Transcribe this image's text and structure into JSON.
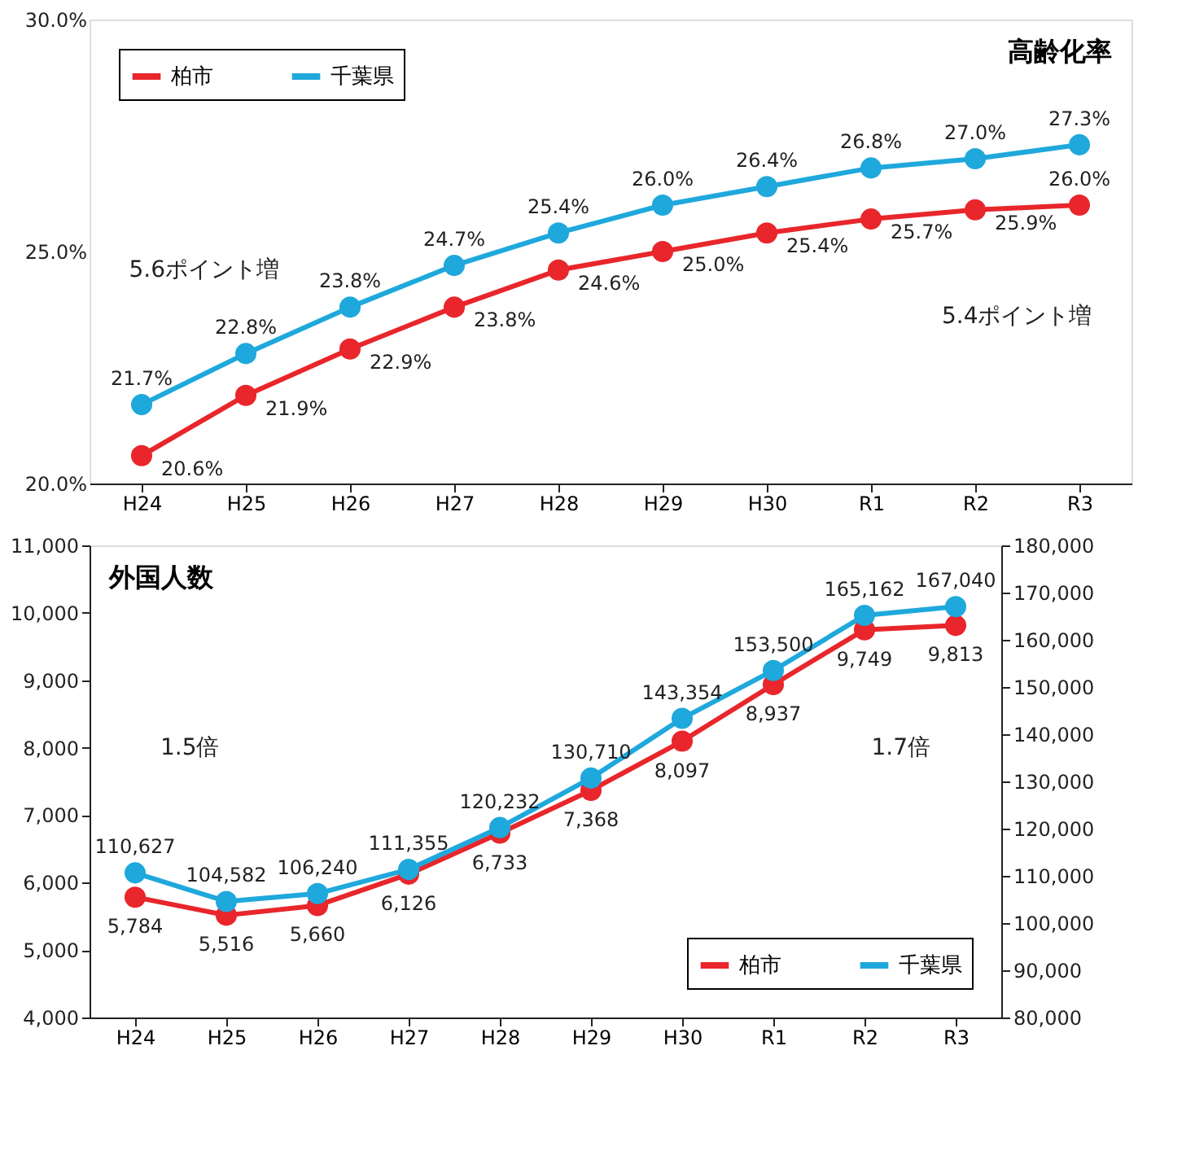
{
  "chart_data": [
    {
      "type": "line",
      "title": "高齢化率",
      "categories": [
        "H24",
        "H25",
        "H26",
        "H27",
        "H28",
        "H29",
        "H30",
        "R1",
        "R2",
        "R3"
      ],
      "ylim": [
        20,
        30
      ],
      "yticks": [
        {
          "value": 20,
          "label": "20.0%"
        },
        {
          "value": 25,
          "label": "25.0%"
        },
        {
          "value": 30,
          "label": "30.0%"
        }
      ],
      "legend": "top left",
      "marker": "circle",
      "grid": false,
      "series": [
        {
          "name": "柏市",
          "color": "#e8262b",
          "values": [
            20.6,
            21.9,
            22.9,
            23.8,
            24.6,
            25.0,
            25.4,
            25.7,
            25.9,
            26.0
          ],
          "value_labels": [
            "20.6%",
            "21.9%",
            "22.9%",
            "23.8%",
            "24.6%",
            "25.0%",
            "25.4%",
            "25.7%",
            "25.9%",
            "26.0%"
          ]
        },
        {
          "name": "千葉県",
          "color": "#1fa8dc",
          "values": [
            21.7,
            22.8,
            23.8,
            24.7,
            25.4,
            26.0,
            26.4,
            26.8,
            27.0,
            27.3
          ],
          "value_labels": [
            "21.7%",
            "22.8%",
            "23.8%",
            "24.7%",
            "25.4%",
            "26.0%",
            "26.4%",
            "26.8%",
            "27.0%",
            "27.3%"
          ]
        }
      ],
      "annotations": [
        "5.6ポイント増",
        "5.4ポイント増"
      ]
    },
    {
      "type": "line",
      "title": "外国人数",
      "categories": [
        "H24",
        "H25",
        "H26",
        "H27",
        "H28",
        "H29",
        "H30",
        "R1",
        "R2",
        "R3"
      ],
      "ylim": [
        4000,
        11000
      ],
      "yticks": [
        {
          "value": 4000,
          "label": "4,000"
        },
        {
          "value": 5000,
          "label": "5,000"
        },
        {
          "value": 6000,
          "label": "6,000"
        },
        {
          "value": 7000,
          "label": "7,000"
        },
        {
          "value": 8000,
          "label": "8,000"
        },
        {
          "value": 9000,
          "label": "9,000"
        },
        {
          "value": 10000,
          "label": "10,000"
        },
        {
          "value": 11000,
          "label": "11,000"
        }
      ],
      "y2lim": [
        80000,
        180000
      ],
      "y2ticks": [
        {
          "value": 80000,
          "label": "80,000"
        },
        {
          "value": 90000,
          "label": "90,000"
        },
        {
          "value": 100000,
          "label": "100,000"
        },
        {
          "value": 110000,
          "label": "110,000"
        },
        {
          "value": 120000,
          "label": "120,000"
        },
        {
          "value": 130000,
          "label": "130,000"
        },
        {
          "value": 140000,
          "label": "140,000"
        },
        {
          "value": 150000,
          "label": "150,000"
        },
        {
          "value": 160000,
          "label": "160,000"
        },
        {
          "value": 170000,
          "label": "170,000"
        },
        {
          "value": 180000,
          "label": "180,000"
        }
      ],
      "legend": "bottom right",
      "marker": "circle",
      "grid": false,
      "series": [
        {
          "name": "柏市",
          "color": "#e8262b",
          "values": [
            5784,
            5516,
            5660,
            6126,
            6733,
            7368,
            8097,
            8937,
            9749,
            9813
          ],
          "value_labels": [
            "5,784",
            "5,516",
            "5,660",
            "6,126",
            "6,733",
            "7,368",
            "8,097",
            "8,937",
            "9,749",
            "9,813"
          ]
        },
        {
          "name": "千葉県",
          "color": "#1fa8dc",
          "axis": "y2",
          "values": [
            110627,
            104582,
            106240,
            111355,
            120232,
            130710,
            143354,
            153500,
            165162,
            167040
          ],
          "value_labels": [
            "110,627",
            "104,582",
            "106,240",
            "111,355",
            "120,232",
            "130,710",
            "143,354",
            "153,500",
            "165,162",
            "167,040"
          ]
        }
      ],
      "annotations": [
        "1.5倍",
        "1.7倍"
      ]
    }
  ]
}
